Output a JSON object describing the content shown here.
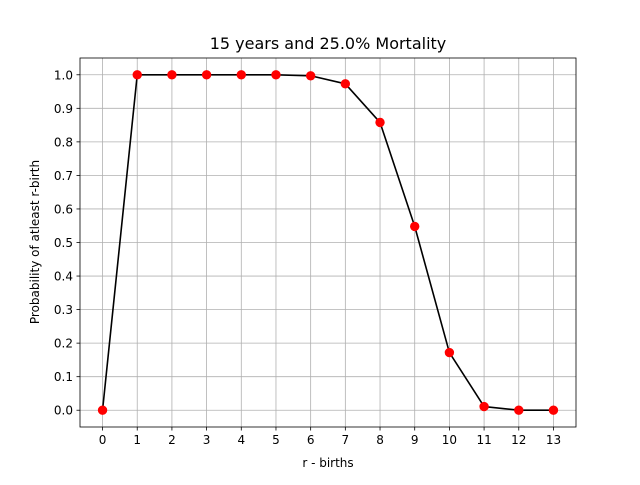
{
  "chart_data": {
    "type": "line",
    "title": "15 years and 25.0% Mortality",
    "xlabel": "r - births",
    "ylabel": "Probability of atleast r-birth",
    "x": [
      0,
      1,
      2,
      3,
      4,
      5,
      6,
      7,
      8,
      9,
      10,
      11,
      12,
      13
    ],
    "series": [
      {
        "values": [
          0.0,
          1.0,
          1.0,
          1.0,
          1.0,
          1.0,
          0.997,
          0.973,
          0.858,
          0.548,
          0.172,
          0.011,
          0.0,
          0.0
        ],
        "line_color": "#000000",
        "marker_color": "#ff0000"
      }
    ],
    "xlim": [
      -0.65,
      13.65
    ],
    "ylim": [
      -0.05,
      1.05
    ],
    "xticks": [
      "0",
      "1",
      "2",
      "3",
      "4",
      "5",
      "6",
      "7",
      "8",
      "9",
      "10",
      "11",
      "12",
      "13"
    ],
    "yticks": [
      "0.0",
      "0.1",
      "0.2",
      "0.3",
      "0.4",
      "0.5",
      "0.6",
      "0.7",
      "0.8",
      "0.9",
      "1.0"
    ],
    "grid": true,
    "grid_color": "#b0b0b0"
  }
}
